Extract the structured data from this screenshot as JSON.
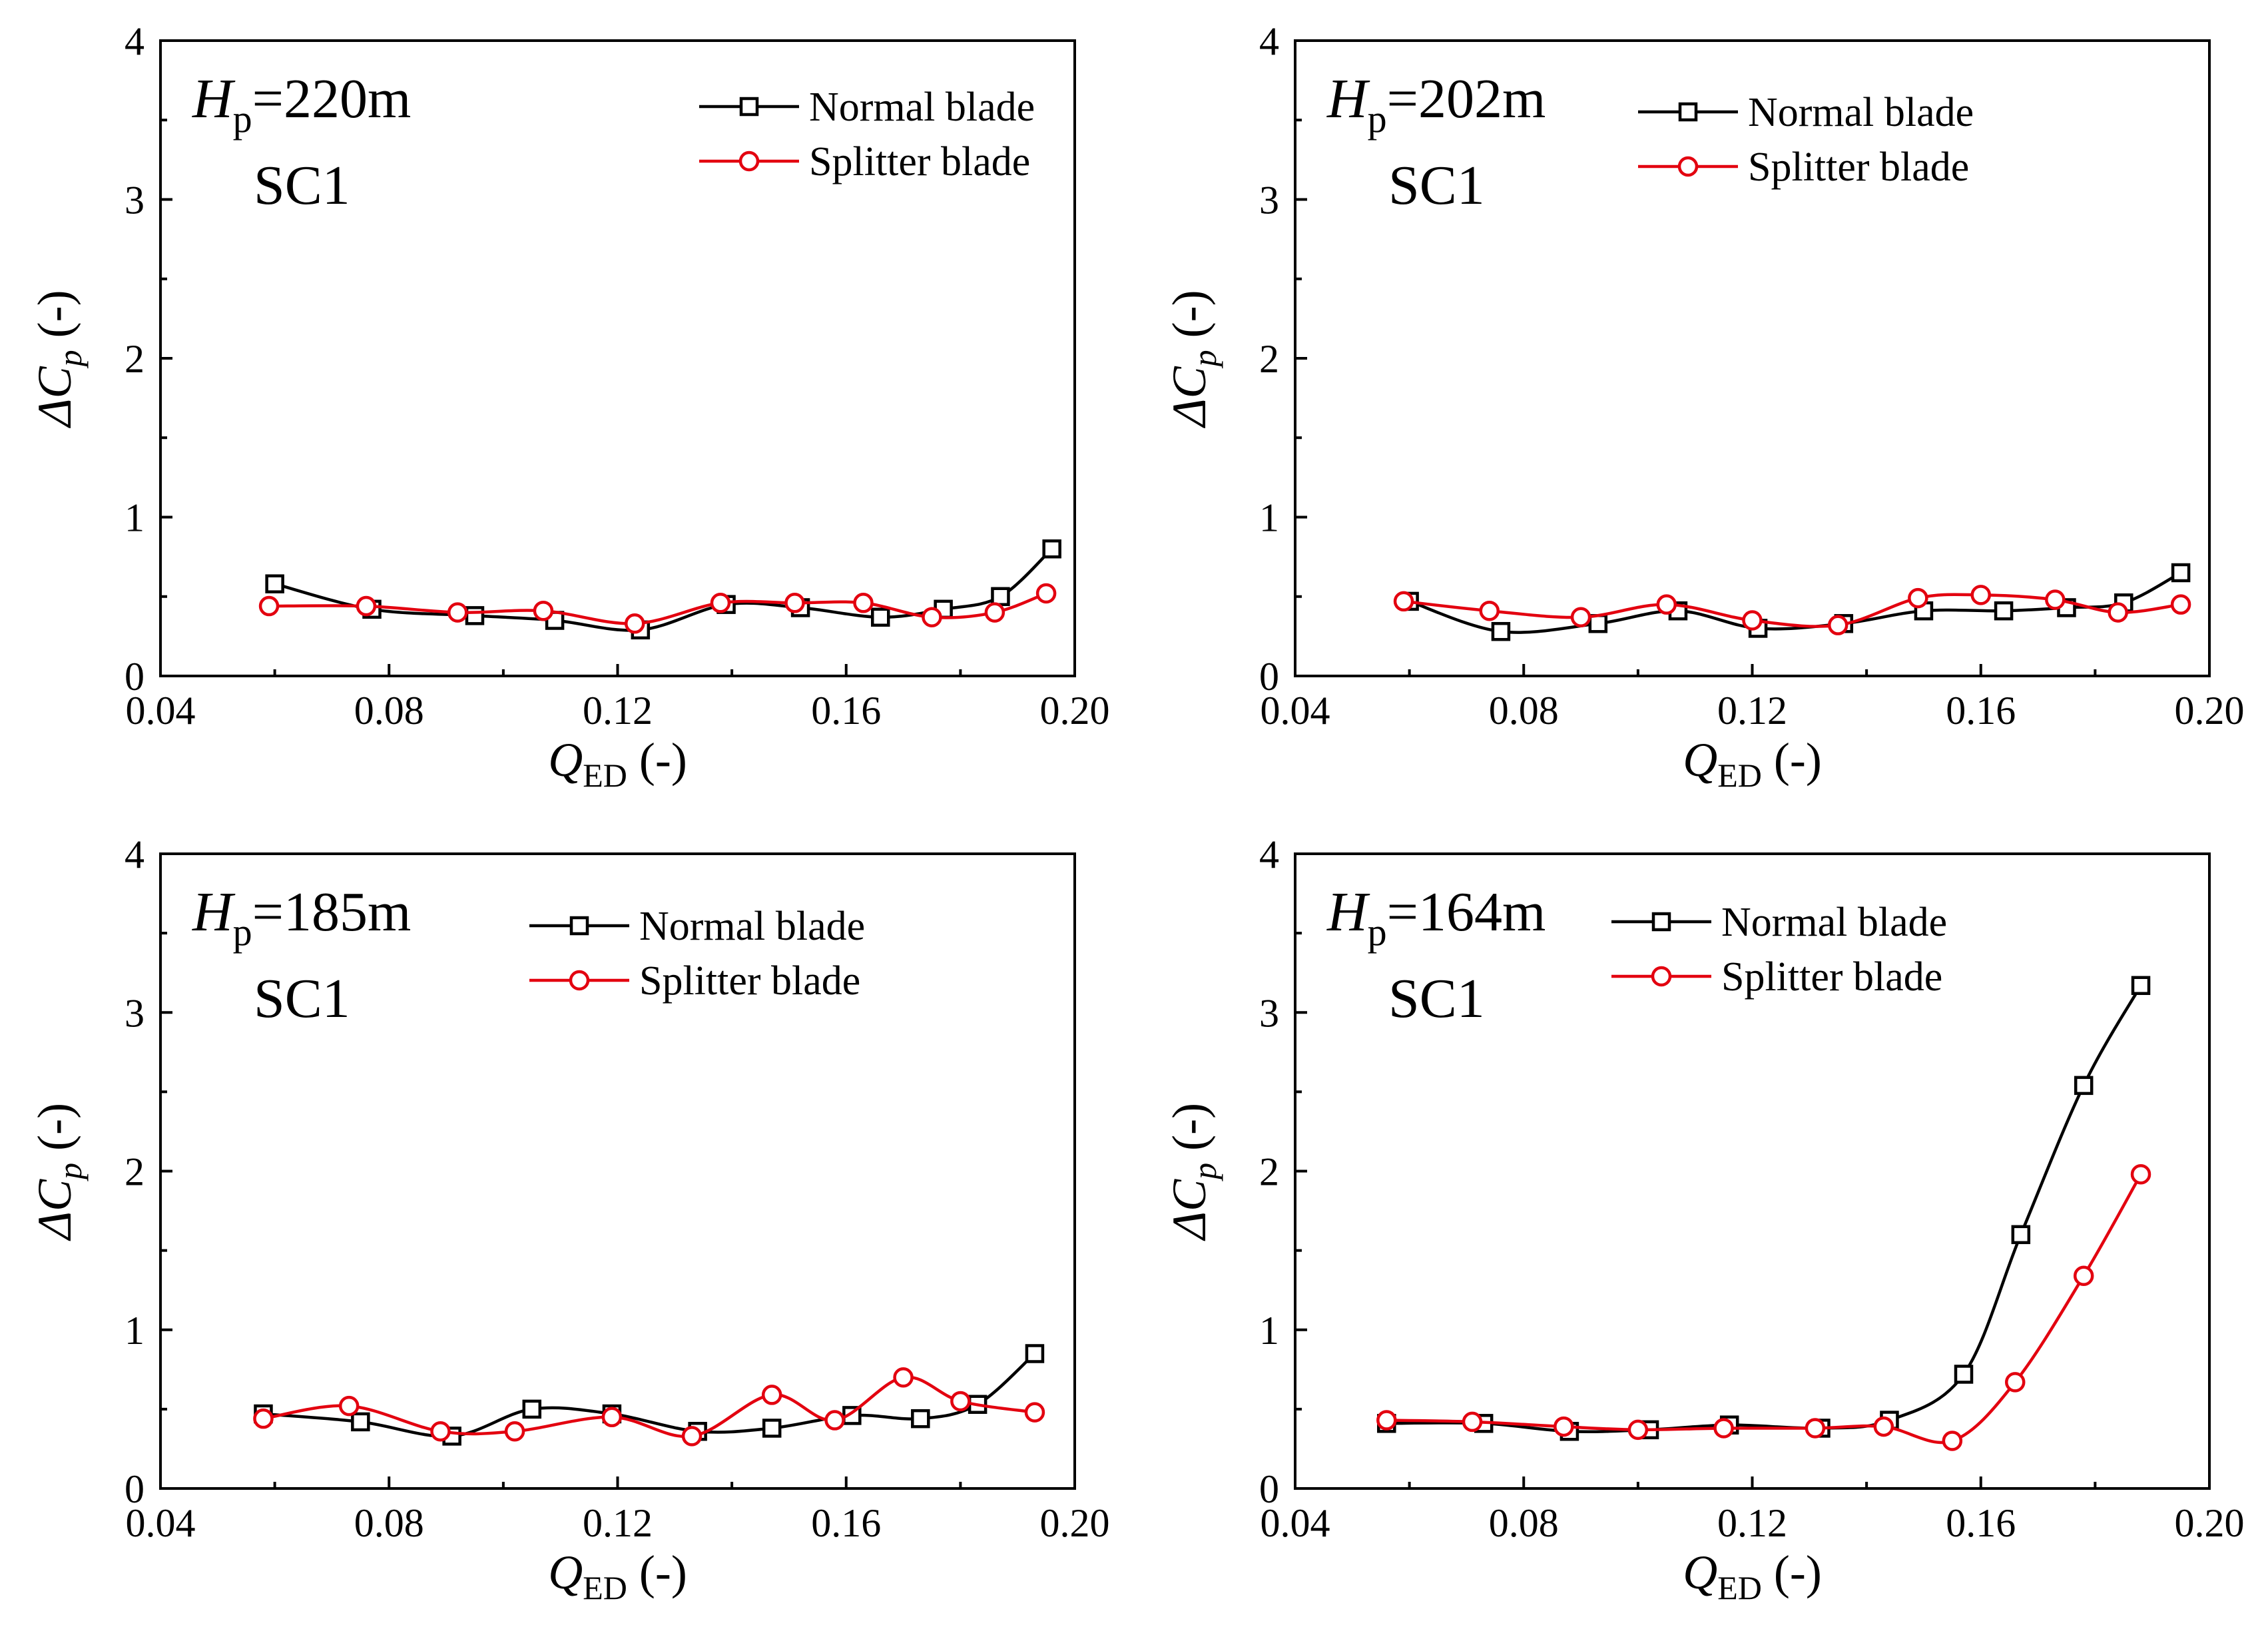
{
  "colors": {
    "normal": "#000000",
    "splitter": "#e3000f"
  },
  "chart_data": [
    {
      "type": "line",
      "title": {
        "symbol": "H",
        "subscript": "p",
        "value": "=220m",
        "case": "SC1"
      },
      "xlabel": {
        "symbol": "Q",
        "subscript": "ED",
        "unit": " (-)"
      },
      "ylabel": {
        "symbol": "ΔC",
        "subscript": "p",
        "unit": " (-)"
      },
      "xlim": [
        0.04,
        0.2
      ],
      "ylim": [
        0,
        4
      ],
      "xticks": [
        "0.04",
        "0.08",
        "0.12",
        "0.16",
        "0.20"
      ],
      "yticks": [
        "0",
        "1",
        "2",
        "3",
        "4"
      ],
      "grid": false,
      "legend": "top-right",
      "series": [
        {
          "name": "Normal blade",
          "marker": "square",
          "color": "#000000",
          "x": [
            0.06,
            0.077,
            0.095,
            0.109,
            0.124,
            0.139,
            0.152,
            0.166,
            0.177,
            0.187,
            0.196
          ],
          "y": [
            0.58,
            0.42,
            0.38,
            0.35,
            0.29,
            0.45,
            0.43,
            0.37,
            0.42,
            0.5,
            0.8
          ]
        },
        {
          "name": "Splitter blade",
          "marker": "circle",
          "color": "#e3000f",
          "x": [
            0.059,
            0.076,
            0.092,
            0.107,
            0.123,
            0.138,
            0.151,
            0.163,
            0.175,
            0.186,
            0.195
          ],
          "y": [
            0.44,
            0.44,
            0.4,
            0.41,
            0.33,
            0.46,
            0.46,
            0.46,
            0.37,
            0.4,
            0.52
          ]
        }
      ]
    },
    {
      "type": "line",
      "title": {
        "symbol": "H",
        "subscript": "p",
        "value": "=202m",
        "case": "SC1"
      },
      "xlabel": {
        "symbol": "Q",
        "subscript": "ED",
        "unit": " (-)"
      },
      "ylabel": {
        "symbol": "ΔC",
        "subscript": "p",
        "unit": " (-)"
      },
      "xlim": [
        0.04,
        0.2
      ],
      "ylim": [
        0,
        4
      ],
      "xticks": [
        "0.04",
        "0.08",
        "0.12",
        "0.16",
        "0.20"
      ],
      "yticks": [
        "0",
        "1",
        "2",
        "3",
        "4"
      ],
      "grid": false,
      "legend": "top-right",
      "series": [
        {
          "name": "Normal blade",
          "marker": "square",
          "color": "#000000",
          "x": [
            0.06,
            0.076,
            0.093,
            0.107,
            0.121,
            0.136,
            0.15,
            0.164,
            0.175,
            0.185,
            0.195
          ],
          "y": [
            0.47,
            0.28,
            0.33,
            0.41,
            0.3,
            0.33,
            0.41,
            0.41,
            0.43,
            0.46,
            0.65
          ]
        },
        {
          "name": "Splitter blade",
          "marker": "circle",
          "color": "#e3000f",
          "x": [
            0.059,
            0.074,
            0.09,
            0.105,
            0.12,
            0.135,
            0.149,
            0.16,
            0.173,
            0.184,
            0.195
          ],
          "y": [
            0.47,
            0.41,
            0.37,
            0.45,
            0.35,
            0.32,
            0.49,
            0.51,
            0.48,
            0.4,
            0.45
          ]
        }
      ]
    },
    {
      "type": "line",
      "title": {
        "symbol": "H",
        "subscript": "p",
        "value": "=185m",
        "case": "SC1"
      },
      "xlabel": {
        "symbol": "Q",
        "subscript": "ED",
        "unit": " (-)"
      },
      "ylabel": {
        "symbol": "ΔC",
        "subscript": "p",
        "unit": " (-)"
      },
      "xlim": [
        0.04,
        0.2
      ],
      "ylim": [
        0,
        4
      ],
      "xticks": [
        "0.04",
        "0.08",
        "0.12",
        "0.16",
        "0.20"
      ],
      "yticks": [
        "0",
        "1",
        "2",
        "3",
        "4"
      ],
      "grid": false,
      "legend": "top-right",
      "series": [
        {
          "name": "Normal blade",
          "marker": "square",
          "color": "#000000",
          "x": [
            0.058,
            0.075,
            0.091,
            0.105,
            0.119,
            0.134,
            0.147,
            0.161,
            0.173,
            0.183,
            0.193
          ],
          "y": [
            0.47,
            0.42,
            0.33,
            0.5,
            0.47,
            0.36,
            0.38,
            0.46,
            0.44,
            0.53,
            0.85
          ]
        },
        {
          "name": "Splitter blade",
          "marker": "circle",
          "color": "#e3000f",
          "x": [
            0.058,
            0.073,
            0.089,
            0.102,
            0.119,
            0.133,
            0.147,
            0.158,
            0.17,
            0.18,
            0.193
          ],
          "y": [
            0.44,
            0.52,
            0.36,
            0.36,
            0.45,
            0.33,
            0.59,
            0.43,
            0.7,
            0.55,
            0.48
          ]
        }
      ]
    },
    {
      "type": "line",
      "title": {
        "symbol": "H",
        "subscript": "p",
        "value": "=164m",
        "case": "SC1"
      },
      "xlabel": {
        "symbol": "Q",
        "subscript": "ED",
        "unit": " (-)"
      },
      "ylabel": {
        "symbol": "ΔC",
        "subscript": "p",
        "unit": " (-)"
      },
      "xlim": [
        0.04,
        0.2
      ],
      "ylim": [
        0,
        4
      ],
      "xticks": [
        "0.04",
        "0.08",
        "0.12",
        "0.16",
        "0.20"
      ],
      "yticks": [
        "0",
        "1",
        "2",
        "3",
        "4"
      ],
      "grid": false,
      "legend": "top-right",
      "series": [
        {
          "name": "Normal blade",
          "marker": "square",
          "color": "#000000",
          "x": [
            0.056,
            0.073,
            0.088,
            0.102,
            0.116,
            0.132,
            0.144,
            0.157,
            0.167,
            0.178,
            0.188
          ],
          "y": [
            0.41,
            0.41,
            0.36,
            0.37,
            0.4,
            0.38,
            0.43,
            0.72,
            1.6,
            2.54,
            3.17
          ]
        },
        {
          "name": "Splitter blade",
          "marker": "circle",
          "color": "#e3000f",
          "x": [
            0.056,
            0.071,
            0.087,
            0.1,
            0.115,
            0.131,
            0.143,
            0.155,
            0.166,
            0.178,
            0.188
          ],
          "y": [
            0.43,
            0.42,
            0.39,
            0.37,
            0.38,
            0.38,
            0.39,
            0.3,
            0.67,
            1.34,
            1.98
          ]
        }
      ]
    }
  ]
}
